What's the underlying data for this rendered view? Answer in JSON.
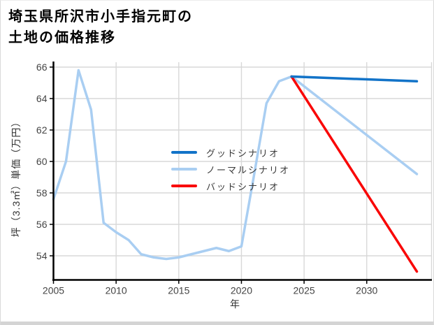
{
  "page": {
    "bg": "#ffffff",
    "border_color": "#d9d9d9",
    "bottom_strip_color": "#d4d4d4"
  },
  "title": {
    "line1": "埼玉県所沢市小手指元町の",
    "line2": "土地の価格推移"
  },
  "legend": {
    "items": [
      {
        "label": "グッドシナリオ",
        "color": "#1273c8"
      },
      {
        "label": "ノーマルシナリオ",
        "color": "#a9cef2"
      },
      {
        "label": "バッドシナリオ",
        "color": "#f90606"
      }
    ]
  },
  "chart_data": {
    "type": "line",
    "title": "埼玉県所沢市小手指元町の土地の価格推移",
    "xlabel": "年",
    "ylabel": "坪（3.3㎡）単価（万円）",
    "xlim": [
      2005,
      2035.2
    ],
    "ylim": [
      52.5,
      66.3
    ],
    "x_ticks": [
      2005,
      2010,
      2015,
      2020,
      2025,
      2030
    ],
    "y_ticks": [
      54,
      56,
      58,
      60,
      62,
      64,
      66
    ],
    "grid": true,
    "grid_color": "#d8d8d8",
    "axis_color": "#000000",
    "legend_position": "center-left-overlay",
    "series": [
      {
        "name": "ノーマルシナリオ",
        "color": "#a9cef2",
        "x": [
          2005,
          2006,
          2007,
          2008,
          2009,
          2010,
          2011,
          2012,
          2013,
          2014,
          2015,
          2016,
          2017,
          2018,
          2019,
          2020,
          2021,
          2022,
          2023,
          2024,
          2034
        ],
        "y": [
          57.6,
          60.0,
          65.8,
          63.3,
          56.1,
          55.5,
          55.0,
          54.1,
          53.9,
          53.8,
          53.9,
          54.1,
          54.3,
          54.5,
          54.3,
          54.6,
          59.1,
          63.7,
          65.1,
          65.4,
          59.2
        ]
      },
      {
        "name": "バッドシナリオ",
        "color": "#f90606",
        "x": [
          2024,
          2034
        ],
        "y": [
          65.4,
          53.0
        ]
      },
      {
        "name": "グッドシナリオ",
        "color": "#1273c8",
        "x": [
          2024,
          2034
        ],
        "y": [
          65.4,
          65.1
        ]
      }
    ]
  }
}
